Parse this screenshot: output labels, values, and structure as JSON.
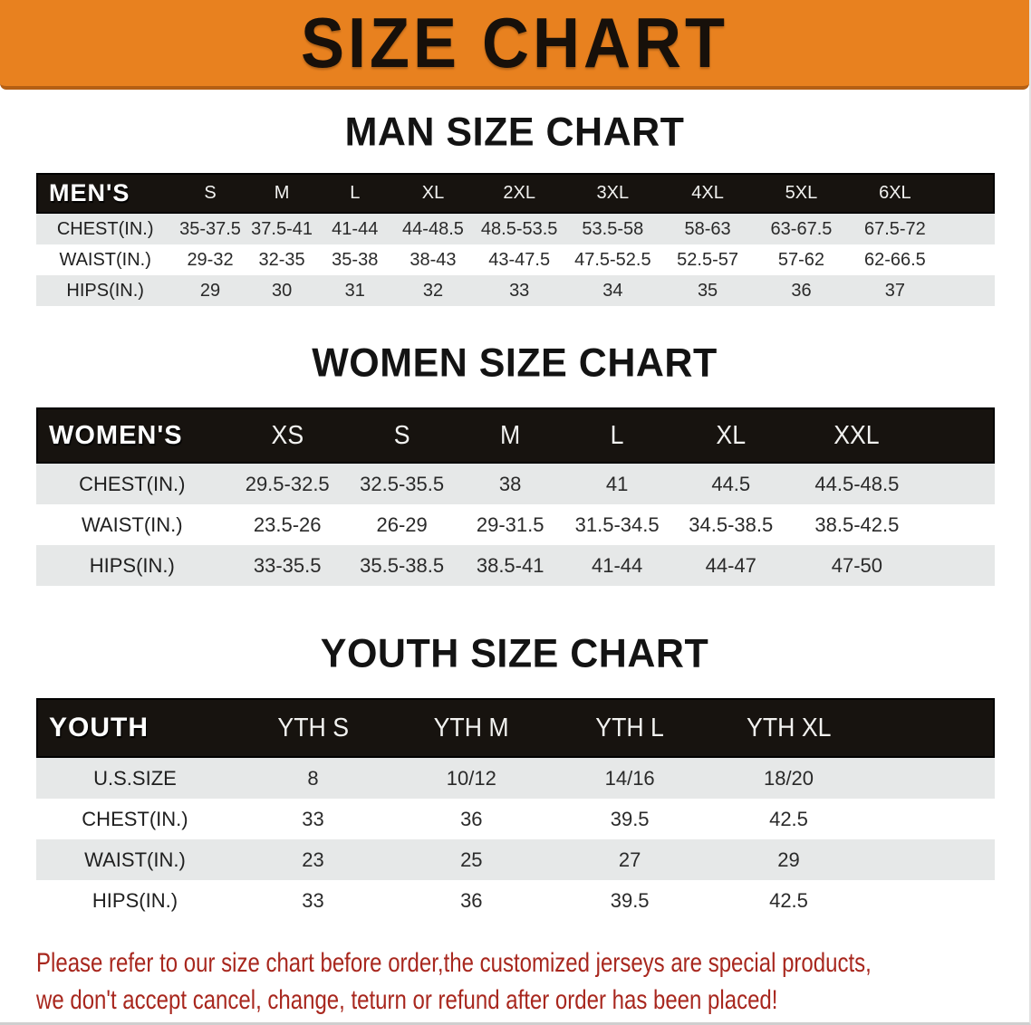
{
  "banner": {
    "title": "SIZE CHART"
  },
  "sections": [
    {
      "title": "MAN SIZE CHART",
      "label_header": "MEN'S",
      "size_headers": [
        "S",
        "M",
        "L",
        "XL",
        "2XL",
        "3XL",
        "4XL",
        "5XL",
        "6XL"
      ],
      "rows": [
        {
          "label": "CHEST(IN.)",
          "values": [
            "35-37.5",
            "37.5-41",
            "41-44",
            "44-48.5",
            "48.5-53.5",
            "53.5-58",
            "58-63",
            "63-67.5",
            "67.5-72"
          ]
        },
        {
          "label": "WAIST(IN.)",
          "values": [
            "29-32",
            "32-35",
            "35-38",
            "38-43",
            "43-47.5",
            "47.5-52.5",
            "52.5-57",
            "57-62",
            "62-66.5"
          ]
        },
        {
          "label": "HIPS(IN.)",
          "values": [
            "29",
            "30",
            "31",
            "32",
            "33",
            "34",
            "35",
            "36",
            "37"
          ]
        }
      ]
    },
    {
      "title": "WOMEN SIZE CHART",
      "label_header": "WOMEN'S",
      "size_headers": [
        "XS",
        "S",
        "M",
        "L",
        "XL",
        "XXL"
      ],
      "rows": [
        {
          "label": "CHEST(IN.)",
          "values": [
            "29.5-32.5",
            "32.5-35.5",
            "38",
            "41",
            "44.5",
            "44.5-48.5"
          ]
        },
        {
          "label": "WAIST(IN.)",
          "values": [
            "23.5-26",
            "26-29",
            "29-31.5",
            "31.5-34.5",
            "34.5-38.5",
            "38.5-42.5"
          ]
        },
        {
          "label": "HIPS(IN.)",
          "values": [
            "33-35.5",
            "35.5-38.5",
            "38.5-41",
            "41-44",
            "44-47",
            "47-50"
          ]
        }
      ]
    },
    {
      "title": "YOUTH SIZE CHART",
      "label_header": "YOUTH",
      "size_headers": [
        "YTH S",
        "YTH M",
        "YTH L",
        "YTH XL"
      ],
      "rows": [
        {
          "label": "U.S.SIZE",
          "values": [
            "8",
            "10/12",
            "14/16",
            "18/20"
          ]
        },
        {
          "label": "CHEST(IN.)",
          "values": [
            "33",
            "36",
            "39.5",
            "42.5"
          ]
        },
        {
          "label": "WAIST(IN.)",
          "values": [
            "23",
            "25",
            "27",
            "29"
          ]
        },
        {
          "label": "HIPS(IN.)",
          "values": [
            "33",
            "36",
            "39.5",
            "42.5"
          ]
        }
      ]
    }
  ],
  "disclaimer": {
    "line1": "Please refer to our size chart before order,the customized jerseys are special products,",
    "line2": "we don't accept cancel, change, teturn or refund after order has been placed!"
  },
  "colors": {
    "banner_orange": "#E8811F",
    "banner_orange_dark": "#B45F14",
    "band_black": "#17130F",
    "stripe_gray": "#E6E8E8",
    "disclaimer_red": "#A8271E"
  }
}
